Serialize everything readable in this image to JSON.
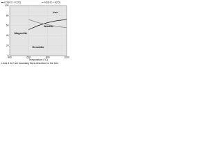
{
  "chart_data": {
    "type": "line",
    "x_label": "Temperature (°C)",
    "caption": "Lines 1 & 2 are boundary lines described in the text.",
    "x": [
      400,
      500,
      600,
      700,
      800,
      900,
      1000
    ],
    "series": [
      {
        "name": "CO/(CO + CO2)",
        "color": "#111111",
        "values": [
          null,
          null,
          52,
          60,
          66,
          70,
          72
        ]
      },
      {
        "name": "H2/(H2 + H2O)",
        "color": "#888888",
        "values": [
          null,
          null,
          72,
          66,
          62,
          58,
          56
        ]
      }
    ],
    "annotations": [
      "Iron",
      "Wustite",
      "Magnetite",
      "Hematite"
    ],
    "xlim": [
      400,
      1000
    ],
    "ylim": [
      0,
      100
    ],
    "xticks": [
      400,
      600,
      800,
      1000
    ],
    "yticks": [
      0,
      20,
      40,
      60,
      80,
      100
    ],
    "grid": true
  }
}
